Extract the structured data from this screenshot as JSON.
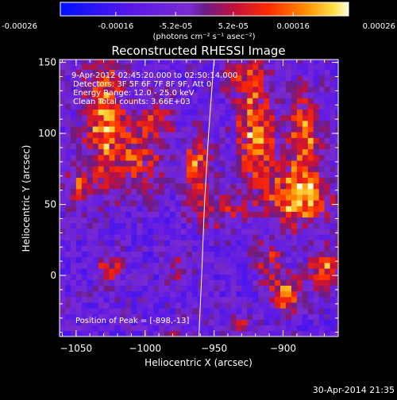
{
  "colorbar": {
    "ticks": [
      "-0.00026",
      "-0.00016",
      "-5.2e-05",
      "5.2e-05",
      "0.00016",
      "0.00026"
    ],
    "tick_values": [
      -0.00026,
      -0.00016,
      -5.2e-05,
      5.2e-05,
      0.00016,
      0.00026
    ],
    "unit_label": "(photons cm⁻² s⁻¹ asec⁻²)",
    "range": [
      -0.00026,
      0.00026
    ]
  },
  "chart_data": {
    "type": "heatmap",
    "title": "Reconstructed RHESSI Image",
    "xlabel": "Heliocentric X (arcsec)",
    "ylabel": "Heliocentric Y (arcsec)",
    "xlim": [
      -1062,
      -860
    ],
    "ylim": [
      -43,
      152
    ],
    "x_ticks": [
      -1050,
      -1000,
      -950,
      -900
    ],
    "x_tick_labels": [
      "−1050",
      "−1000",
      "−950",
      "−900"
    ],
    "y_ticks": [
      0,
      50,
      100,
      150
    ],
    "y_tick_labels": [
      "0",
      "50",
      "100",
      "150"
    ],
    "limb_line": [
      [
        -961,
        -43
      ],
      [
        -959,
        0
      ],
      [
        -957,
        50
      ],
      [
        -954,
        100
      ],
      [
        -950,
        152
      ]
    ],
    "sources": [
      {
        "x": -1030,
        "y": 110,
        "sx": 10,
        "sy": 30,
        "amp": 0.00024
      },
      {
        "x": -1048,
        "y": 65,
        "sx": 7,
        "sy": 10,
        "amp": 0.00016
      },
      {
        "x": -1005,
        "y": 85,
        "sx": 12,
        "sy": 18,
        "amp": 0.00016
      },
      {
        "x": -990,
        "y": 110,
        "sx": 8,
        "sy": 12,
        "amp": 0.00012
      },
      {
        "x": -1025,
        "y": 5,
        "sx": 6,
        "sy": 6,
        "amp": 0.00018
      },
      {
        "x": -975,
        "y": 5,
        "sx": 5,
        "sy": 8,
        "amp": 0.00012
      },
      {
        "x": -962,
        "y": 75,
        "sx": 7,
        "sy": 16,
        "amp": 0.00022
      },
      {
        "x": -978,
        "y": -40,
        "sx": 5,
        "sy": 5,
        "amp": 0.0001
      },
      {
        "x": -930,
        "y": 140,
        "sx": 10,
        "sy": 8,
        "amp": 0.00016
      },
      {
        "x": -920,
        "y": 100,
        "sx": 9,
        "sy": 24,
        "amp": 0.00026
      },
      {
        "x": -885,
        "y": 100,
        "sx": 8,
        "sy": 20,
        "amp": 0.00024
      },
      {
        "x": -945,
        "y": 45,
        "sx": 12,
        "sy": 8,
        "amp": 0.00014
      },
      {
        "x": -890,
        "y": 55,
        "sx": 16,
        "sy": 14,
        "amp": 0.00026
      },
      {
        "x": -898,
        "y": -13,
        "sx": 8,
        "sy": 8,
        "amp": 0.00026
      },
      {
        "x": -870,
        "y": 5,
        "sx": 7,
        "sy": 10,
        "amp": 0.00022
      },
      {
        "x": -910,
        "y": 10,
        "sx": 7,
        "sy": 10,
        "amp": 0.00014
      },
      {
        "x": -932,
        "y": -35,
        "sx": 6,
        "sy": 5,
        "amp": 0.00012
      }
    ],
    "background": -8e-05,
    "noise": 8e-05
  },
  "overlay": {
    "time_range": "9-Apr-2012 02:45:20.000 to 02:50:14.000",
    "detectors": "Detectors: 3F 5F 6F 7F 8F 9F, Att 0",
    "energy": "Energy Range: 12.0 - 25.0 keV",
    "clean": "Clean    Total counts: 3.66E+03",
    "peak": "Position of Peak = [-898,-13]"
  },
  "footer": {
    "timestamp": "30-Apr-2014 21:35"
  }
}
